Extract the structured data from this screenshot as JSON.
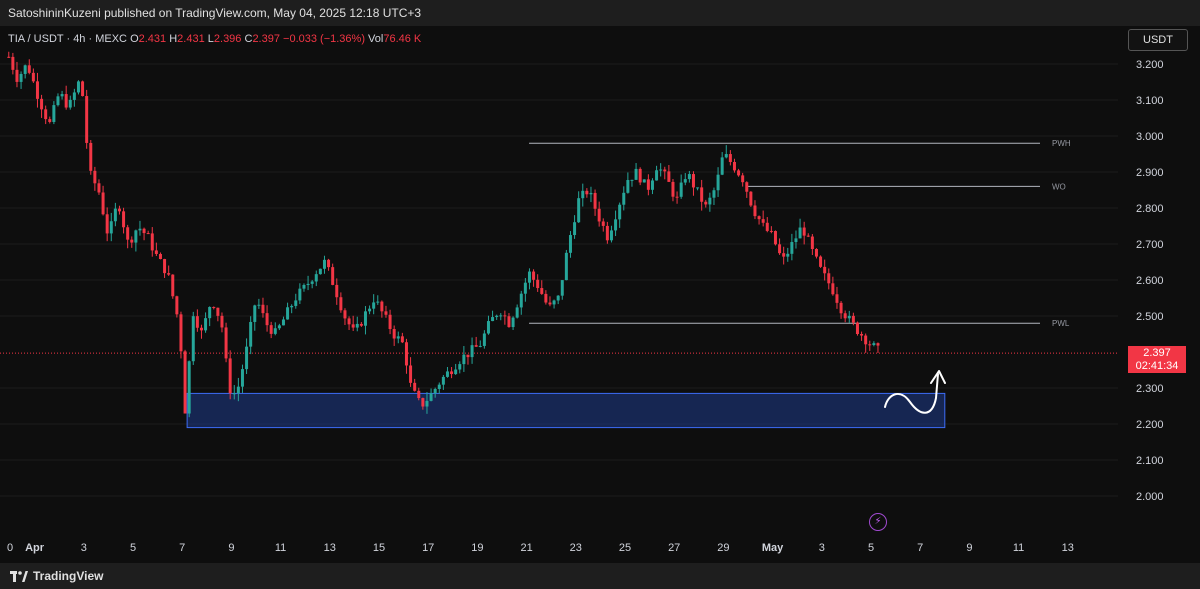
{
  "header": {
    "publisher": "SatoshininKuzeni published on TradingView.com, May 04, 2025 12:18 UTC+3"
  },
  "legend": {
    "symbol": "TIA / USDT · 4h · MEXC",
    "open_label": "O",
    "open": "2.431",
    "high_label": "H",
    "high": "2.431",
    "low_label": "L",
    "low": "2.396",
    "close_label": "C",
    "close": "2.397",
    "change": "−0.033 (−1.36%)",
    "vol_label": "Vol",
    "vol": "76.46 K"
  },
  "currency": "USDT",
  "price_tag": {
    "price": "2.397",
    "countdown": "02:41:34"
  },
  "footer": {
    "brand": "TradingView"
  },
  "colors": {
    "up": "#26a69a",
    "down": "#f23645",
    "zone": "#1e3a8a",
    "zone_border": "#3d6cf5"
  },
  "icons": {
    "bolt": "lightning-icon",
    "logo": "tradingview-logo-icon"
  },
  "chart_data": {
    "type": "candlestick",
    "y_axis": {
      "ticks": [
        "3.200",
        "3.100",
        "3.000",
        "2.900",
        "2.800",
        "2.700",
        "2.600",
        "2.500",
        "2.300",
        "2.200",
        "2.100",
        "2.000"
      ],
      "range": [
        1.95,
        3.25
      ]
    },
    "x_axis": {
      "ticks": [
        {
          "label": "0",
          "day": 31
        },
        {
          "label": "Apr",
          "day": 32
        },
        {
          "label": "3",
          "day": 34
        },
        {
          "label": "5",
          "day": 36
        },
        {
          "label": "7",
          "day": 38
        },
        {
          "label": "9",
          "day": 40
        },
        {
          "label": "11",
          "day": 42
        },
        {
          "label": "13",
          "day": 44
        },
        {
          "label": "15",
          "day": 46
        },
        {
          "label": "17",
          "day": 48
        },
        {
          "label": "19",
          "day": 50
        },
        {
          "label": "21",
          "day": 52
        },
        {
          "label": "23",
          "day": 54
        },
        {
          "label": "25",
          "day": 56
        },
        {
          "label": "27",
          "day": 58
        },
        {
          "label": "29",
          "day": 60
        },
        {
          "label": "May",
          "day": 62
        },
        {
          "label": "3",
          "day": 64
        },
        {
          "label": "5",
          "day": 66
        },
        {
          "label": "7",
          "day": 68
        },
        {
          "label": "9",
          "day": 70
        },
        {
          "label": "11",
          "day": 72
        },
        {
          "label": "13",
          "day": 74
        }
      ],
      "note_days": "day counted from Mar 1; day 32 = Apr 1, day 62 = May 1"
    },
    "series_path": [
      [
        30.95,
        3.22
      ],
      [
        31.3,
        3.16
      ],
      [
        31.7,
        3.2
      ],
      [
        32.2,
        3.1
      ],
      [
        32.6,
        3.03
      ],
      [
        33.0,
        3.12
      ],
      [
        33.4,
        3.08
      ],
      [
        33.8,
        3.15
      ],
      [
        34.0,
        3.1
      ],
      [
        34.2,
        2.9
      ],
      [
        34.6,
        2.85
      ],
      [
        35.0,
        2.72
      ],
      [
        35.4,
        2.82
      ],
      [
        35.8,
        2.7
      ],
      [
        36.2,
        2.75
      ],
      [
        36.6,
        2.72
      ],
      [
        37.0,
        2.66
      ],
      [
        37.4,
        2.62
      ],
      [
        37.8,
        2.5
      ],
      [
        38.0,
        2.38
      ],
      [
        38.15,
        2.2
      ],
      [
        38.4,
        2.52
      ],
      [
        38.8,
        2.45
      ],
      [
        39.2,
        2.55
      ],
      [
        39.6,
        2.48
      ],
      [
        39.9,
        2.3
      ],
      [
        40.2,
        2.28
      ],
      [
        40.6,
        2.4
      ],
      [
        41.0,
        2.55
      ],
      [
        41.4,
        2.48
      ],
      [
        41.8,
        2.45
      ],
      [
        42.2,
        2.5
      ],
      [
        42.6,
        2.55
      ],
      [
        43.0,
        2.58
      ],
      [
        43.4,
        2.62
      ],
      [
        43.8,
        2.65
      ],
      [
        44.2,
        2.58
      ],
      [
        44.6,
        2.5
      ],
      [
        45.0,
        2.45
      ],
      [
        45.4,
        2.5
      ],
      [
        45.8,
        2.55
      ],
      [
        46.2,
        2.5
      ],
      [
        46.6,
        2.45
      ],
      [
        47.0,
        2.42
      ],
      [
        47.3,
        2.3
      ],
      [
        47.7,
        2.25
      ],
      [
        48.1,
        2.28
      ],
      [
        48.5,
        2.32
      ],
      [
        48.9,
        2.35
      ],
      [
        49.3,
        2.38
      ],
      [
        49.7,
        2.4
      ],
      [
        50.1,
        2.42
      ],
      [
        50.5,
        2.48
      ],
      [
        50.9,
        2.52
      ],
      [
        51.3,
        2.48
      ],
      [
        51.7,
        2.55
      ],
      [
        52.1,
        2.62
      ],
      [
        52.5,
        2.58
      ],
      [
        52.9,
        2.52
      ],
      [
        53.3,
        2.55
      ],
      [
        53.7,
        2.7
      ],
      [
        54.1,
        2.82
      ],
      [
        54.5,
        2.85
      ],
      [
        54.9,
        2.78
      ],
      [
        55.3,
        2.72
      ],
      [
        55.7,
        2.8
      ],
      [
        56.1,
        2.88
      ],
      [
        56.5,
        2.9
      ],
      [
        56.9,
        2.85
      ],
      [
        57.3,
        2.92
      ],
      [
        57.7,
        2.88
      ],
      [
        58.1,
        2.82
      ],
      [
        58.5,
        2.9
      ],
      [
        58.9,
        2.85
      ],
      [
        59.3,
        2.8
      ],
      [
        59.7,
        2.86
      ],
      [
        60.0,
        2.95
      ],
      [
        60.4,
        2.92
      ],
      [
        60.8,
        2.88
      ],
      [
        61.2,
        2.8
      ],
      [
        61.6,
        2.75
      ],
      [
        62.0,
        2.72
      ],
      [
        62.4,
        2.65
      ],
      [
        62.8,
        2.7
      ],
      [
        63.2,
        2.75
      ],
      [
        63.6,
        2.68
      ],
      [
        64.0,
        2.62
      ],
      [
        64.4,
        2.58
      ],
      [
        64.8,
        2.52
      ],
      [
        65.2,
        2.48
      ],
      [
        65.6,
        2.45
      ],
      [
        66.0,
        2.42
      ],
      [
        66.4,
        2.397
      ]
    ],
    "levels": [
      {
        "name": "PWH",
        "price": 2.98,
        "from_day": 52.1,
        "to_day": 73.0
      },
      {
        "name": "WO",
        "price": 2.86,
        "from_day": 61.0,
        "to_day": 73.0
      },
      {
        "name": "PWL",
        "price": 2.48,
        "from_day": 52.1,
        "to_day": 73.0
      }
    ],
    "current_price": 2.397,
    "zone": {
      "low": 2.19,
      "high": 2.285,
      "from_day": 38.2,
      "to_day": 69.0
    }
  }
}
